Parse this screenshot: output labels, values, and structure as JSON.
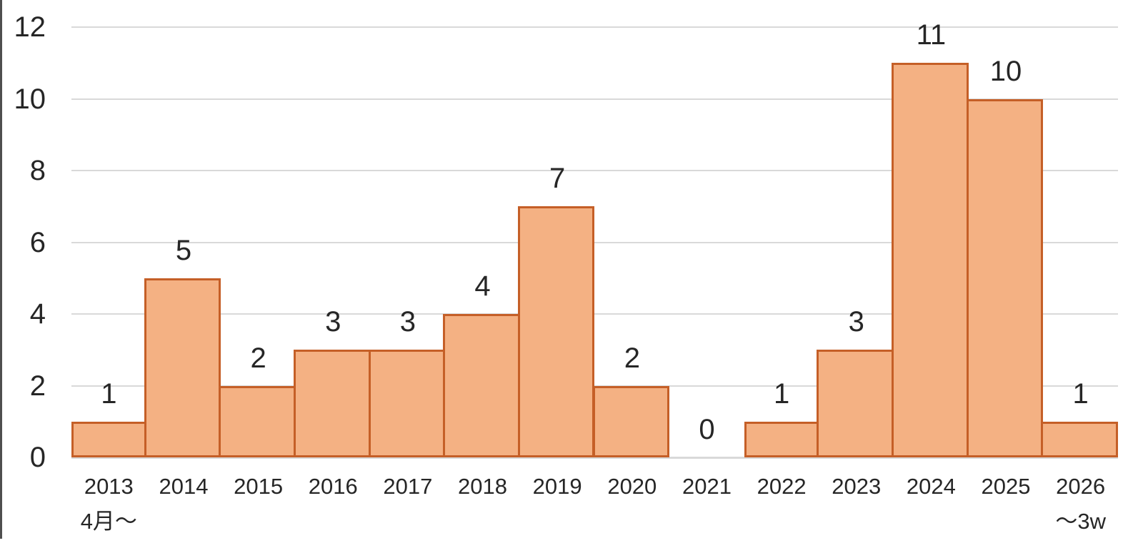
{
  "chart_data": {
    "type": "bar",
    "title": "",
    "categories": [
      {
        "label": "2013",
        "sublabel": "4月〜"
      },
      {
        "label": "2014",
        "sublabel": ""
      },
      {
        "label": "2015",
        "sublabel": ""
      },
      {
        "label": "2016",
        "sublabel": ""
      },
      {
        "label": "2017",
        "sublabel": ""
      },
      {
        "label": "2018",
        "sublabel": ""
      },
      {
        "label": "2019",
        "sublabel": ""
      },
      {
        "label": "2020",
        "sublabel": ""
      },
      {
        "label": "2021",
        "sublabel": ""
      },
      {
        "label": "2022",
        "sublabel": ""
      },
      {
        "label": "2023",
        "sublabel": ""
      },
      {
        "label": "2024",
        "sublabel": ""
      },
      {
        "label": "2025",
        "sublabel": ""
      },
      {
        "label": "2026",
        "sublabel": "〜3w"
      }
    ],
    "values": [
      1,
      5,
      2,
      3,
      3,
      4,
      7,
      2,
      0,
      1,
      3,
      11,
      10,
      1
    ],
    "data_labels": [
      "1",
      "5",
      "2",
      "3",
      "3",
      "4",
      "7",
      "2",
      "0",
      "1",
      "3",
      "11",
      "10",
      "1"
    ],
    "xlabel": "",
    "ylabel": "",
    "ylim": [
      0,
      12
    ],
    "yticks": [
      0,
      2,
      4,
      6,
      8,
      10,
      12
    ],
    "ytick_labels": [
      "0",
      "2",
      "4",
      "6",
      "8",
      "10",
      "12"
    ],
    "grid": true,
    "legend": "none",
    "colors": {
      "bar_fill": "#F4B183",
      "bar_border": "#C55F27",
      "gridline": "#D9D9D9",
      "text": "#262626",
      "axis_edge": "#4F4F4F"
    }
  }
}
